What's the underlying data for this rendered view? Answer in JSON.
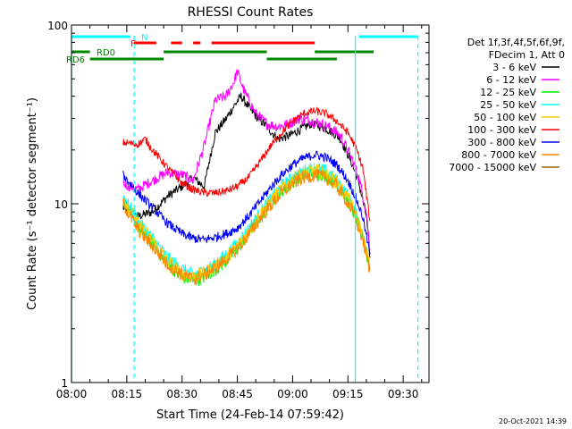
{
  "chart_data": {
    "type": "line",
    "title": "RHESSI Count Rates",
    "xlabel": "Start Time (24-Feb-14 07:59:42)",
    "ylabel": "Count Rate (s⁻¹ detector segment⁻¹)",
    "y_scale": "log",
    "ylim": [
      1,
      100
    ],
    "xlim": [
      "08:00",
      "09:37"
    ],
    "x_ticks": [
      "08:00",
      "08:15",
      "08:30",
      "08:45",
      "09:00",
      "09:15",
      "09:30"
    ],
    "y_ticks": [
      "1",
      "10",
      "100"
    ],
    "legend_header": [
      "Det 1f,3f,4f,5f,6f,9f,",
      "FDecim 1, Att 0"
    ],
    "legend_position": "right",
    "timestamp": "20-Oct-2021 14:39",
    "series": [
      {
        "name": "3 - 6 keV",
        "color": "#000000",
        "values": [
          [
            "08:14",
            9.5
          ],
          [
            "08:18",
            8.5
          ],
          [
            "08:22",
            9.0
          ],
          [
            "08:26",
            11.0
          ],
          [
            "08:30",
            12.5
          ],
          [
            "08:33",
            14.0
          ],
          [
            "08:36",
            12.5
          ],
          [
            "08:39",
            25.0
          ],
          [
            "08:42",
            30.0
          ],
          [
            "08:44",
            35.0
          ],
          [
            "08:46",
            40.0
          ],
          [
            "08:48",
            35.0
          ],
          [
            "08:50",
            31.0
          ],
          [
            "08:53",
            27.0
          ],
          [
            "08:56",
            23.0
          ],
          [
            "08:59",
            24.0
          ],
          [
            "09:02",
            26.0
          ],
          [
            "09:05",
            28.0
          ],
          [
            "09:08",
            27.0
          ],
          [
            "09:11",
            25.0
          ],
          [
            "09:13",
            23.0
          ],
          [
            "09:16",
            17.0
          ],
          [
            "09:18",
            13.0
          ],
          [
            "09:20",
            8.5
          ],
          [
            "09:21",
            5.0
          ]
        ]
      },
      {
        "name": "6 - 12 keV",
        "color": "#ff00ff",
        "values": [
          [
            "08:14",
            13.0
          ],
          [
            "08:18",
            12.0
          ],
          [
            "08:22",
            13.5
          ],
          [
            "08:26",
            15.0
          ],
          [
            "08:30",
            14.5
          ],
          [
            "08:33",
            13.5
          ],
          [
            "08:36",
            21.0
          ],
          [
            "08:39",
            38.0
          ],
          [
            "08:42",
            40.0
          ],
          [
            "08:44",
            48.0
          ],
          [
            "08:45",
            55.0
          ],
          [
            "08:47",
            42.0
          ],
          [
            "08:50",
            32.0
          ],
          [
            "08:53",
            28.0
          ],
          [
            "08:56",
            27.0
          ],
          [
            "08:59",
            28.0
          ],
          [
            "09:02",
            30.0
          ],
          [
            "09:05",
            29.0
          ],
          [
            "09:08",
            28.0
          ],
          [
            "09:11",
            26.0
          ],
          [
            "09:13",
            24.0
          ],
          [
            "09:16",
            18.0
          ],
          [
            "09:18",
            14.0
          ],
          [
            "09:20",
            9.0
          ],
          [
            "09:21",
            5.5
          ]
        ]
      },
      {
        "name": "12 - 25 keV",
        "color": "#00ff00",
        "values": [
          [
            "08:14",
            10.5
          ],
          [
            "08:18",
            7.5
          ],
          [
            "08:22",
            6.0
          ],
          [
            "08:26",
            4.6
          ],
          [
            "08:30",
            3.9
          ],
          [
            "08:33",
            3.7
          ],
          [
            "08:36",
            3.9
          ],
          [
            "08:39",
            4.3
          ],
          [
            "08:42",
            4.8
          ],
          [
            "08:45",
            5.6
          ],
          [
            "08:48",
            6.8
          ],
          [
            "08:51",
            8.3
          ],
          [
            "08:54",
            10.0
          ],
          [
            "08:57",
            11.8
          ],
          [
            "09:00",
            13.3
          ],
          [
            "09:03",
            14.5
          ],
          [
            "09:06",
            15.0
          ],
          [
            "09:09",
            14.5
          ],
          [
            "09:12",
            12.8
          ],
          [
            "09:15",
            10.5
          ],
          [
            "09:17",
            8.5
          ],
          [
            "09:19",
            6.5
          ],
          [
            "09:21",
            4.3
          ]
        ]
      },
      {
        "name": "25 - 50 keV",
        "color": "#00ffff",
        "values": [
          [
            "08:14",
            11.0
          ],
          [
            "08:18",
            8.0
          ],
          [
            "08:22",
            6.4
          ],
          [
            "08:26",
            5.0
          ],
          [
            "08:30",
            4.3
          ],
          [
            "08:33",
            4.0
          ],
          [
            "08:36",
            4.2
          ],
          [
            "08:39",
            4.6
          ],
          [
            "08:42",
            5.2
          ],
          [
            "08:45",
            6.0
          ],
          [
            "08:48",
            7.2
          ],
          [
            "08:51",
            8.8
          ],
          [
            "08:54",
            10.6
          ],
          [
            "08:57",
            12.5
          ],
          [
            "09:00",
            14.0
          ],
          [
            "09:03",
            15.2
          ],
          [
            "09:06",
            15.8
          ],
          [
            "09:09",
            15.2
          ],
          [
            "09:12",
            13.5
          ],
          [
            "09:15",
            11.0
          ],
          [
            "09:17",
            9.0
          ],
          [
            "09:19",
            6.8
          ],
          [
            "09:21",
            4.5
          ]
        ]
      },
      {
        "name": "50 - 100 keV",
        "color": "#ffcc00",
        "values": [
          [
            "08:14",
            10.8
          ],
          [
            "08:18",
            7.8
          ],
          [
            "08:22",
            6.2
          ],
          [
            "08:26",
            4.8
          ],
          [
            "08:30",
            4.1
          ],
          [
            "08:33",
            3.9
          ],
          [
            "08:36",
            4.1
          ],
          [
            "08:39",
            4.5
          ],
          [
            "08:42",
            5.0
          ],
          [
            "08:45",
            5.8
          ],
          [
            "08:48",
            7.0
          ],
          [
            "08:51",
            8.6
          ],
          [
            "08:54",
            10.3
          ],
          [
            "08:57",
            12.2
          ],
          [
            "09:00",
            13.7
          ],
          [
            "09:03",
            14.8
          ],
          [
            "09:06",
            15.4
          ],
          [
            "09:09",
            14.8
          ],
          [
            "09:12",
            13.2
          ],
          [
            "09:15",
            10.8
          ],
          [
            "09:17",
            8.8
          ],
          [
            "09:19",
            6.6
          ],
          [
            "09:21",
            4.4
          ]
        ]
      },
      {
        "name": "100 - 300 keV",
        "color": "#ff0000",
        "values": [
          [
            "08:14",
            22.0
          ],
          [
            "08:18",
            21.5
          ],
          [
            "08:20",
            23.0
          ],
          [
            "08:22",
            20.0
          ],
          [
            "08:26",
            16.0
          ],
          [
            "08:30",
            13.0
          ],
          [
            "08:33",
            12.0
          ],
          [
            "08:36",
            11.5
          ],
          [
            "08:39",
            11.5
          ],
          [
            "08:42",
            11.8
          ],
          [
            "08:45",
            12.5
          ],
          [
            "08:48",
            14.0
          ],
          [
            "08:51",
            17.0
          ],
          [
            "08:54",
            21.0
          ],
          [
            "08:57",
            25.0
          ],
          [
            "09:00",
            29.0
          ],
          [
            "09:03",
            32.0
          ],
          [
            "09:06",
            33.0
          ],
          [
            "09:09",
            32.0
          ],
          [
            "09:12",
            29.0
          ],
          [
            "09:15",
            25.0
          ],
          [
            "09:17",
            21.0
          ],
          [
            "09:19",
            16.0
          ],
          [
            "09:21",
            8.0
          ]
        ]
      },
      {
        "name": "300 - 800 keV",
        "color": "#0000ff",
        "values": [
          [
            "08:14",
            14.5
          ],
          [
            "08:18",
            11.5
          ],
          [
            "08:22",
            9.5
          ],
          [
            "08:26",
            7.8
          ],
          [
            "08:30",
            6.8
          ],
          [
            "08:33",
            6.4
          ],
          [
            "08:36",
            6.3
          ],
          [
            "08:39",
            6.5
          ],
          [
            "08:42",
            6.8
          ],
          [
            "08:45",
            7.3
          ],
          [
            "08:48",
            8.5
          ],
          [
            "08:51",
            10.2
          ],
          [
            "08:54",
            12.3
          ],
          [
            "08:57",
            14.5
          ],
          [
            "09:00",
            16.5
          ],
          [
            "09:03",
            18.0
          ],
          [
            "09:06",
            18.8
          ],
          [
            "09:09",
            18.2
          ],
          [
            "09:12",
            16.5
          ],
          [
            "09:15",
            13.5
          ],
          [
            "09:17",
            11.0
          ],
          [
            "09:19",
            8.5
          ],
          [
            "09:21",
            5.2
          ]
        ]
      },
      {
        "name": "800 - 7000 keV",
        "color": "#ff8800",
        "values": [
          [
            "08:14",
            10.0
          ],
          [
            "08:18",
            7.2
          ],
          [
            "08:22",
            5.8
          ],
          [
            "08:26",
            4.6
          ],
          [
            "08:30",
            4.0
          ],
          [
            "08:33",
            3.8
          ],
          [
            "08:36",
            4.0
          ],
          [
            "08:39",
            4.4
          ],
          [
            "08:42",
            4.9
          ],
          [
            "08:45",
            5.6
          ],
          [
            "08:48",
            6.7
          ],
          [
            "08:51",
            8.2
          ],
          [
            "08:54",
            9.8
          ],
          [
            "08:57",
            11.5
          ],
          [
            "09:00",
            13.0
          ],
          [
            "09:03",
            14.0
          ],
          [
            "09:06",
            14.5
          ],
          [
            "09:09",
            14.0
          ],
          [
            "09:12",
            12.5
          ],
          [
            "09:15",
            10.2
          ],
          [
            "09:17",
            8.3
          ],
          [
            "09:19",
            6.3
          ],
          [
            "09:21",
            4.2
          ]
        ]
      },
      {
        "name": "7000 - 15000 keV",
        "color": "#996600",
        "values": []
      }
    ],
    "attenuator_bars": [
      {
        "label": "N",
        "color": "#00ffff",
        "y_level": "top",
        "segments": [
          [
            "08:00",
            "08:16"
          ],
          [
            "09:18",
            "09:34"
          ]
        ]
      },
      {
        "label": "F",
        "color": "#ff0000",
        "y_level": "upper",
        "segments": [
          [
            "08:17",
            "08:23"
          ],
          [
            "08:27",
            "08:30"
          ],
          [
            "08:33",
            "08:35"
          ],
          [
            "08:38",
            "09:06"
          ]
        ]
      },
      {
        "label": "RD0",
        "color": "#008800",
        "y_level": "middle",
        "segments": [
          [
            "08:00",
            "08:05"
          ],
          [
            "08:25",
            "08:53"
          ],
          [
            "09:06",
            "09:22"
          ]
        ]
      },
      {
        "label": "RD6",
        "color": "#008800",
        "y_level": "lower",
        "segments": [
          [
            "08:05",
            "08:25"
          ],
          [
            "08:53",
            "09:12"
          ]
        ]
      }
    ],
    "vertical_markers": [
      {
        "time": "08:00",
        "style": "solid",
        "color": "#00ffff"
      },
      {
        "time": "08:17",
        "style": "dashed",
        "color": "#00ffff"
      },
      {
        "time": "09:17",
        "style": "solid",
        "color": "#00ffff"
      },
      {
        "time": "09:34",
        "style": "dashed",
        "color": "#00ffff"
      }
    ]
  }
}
